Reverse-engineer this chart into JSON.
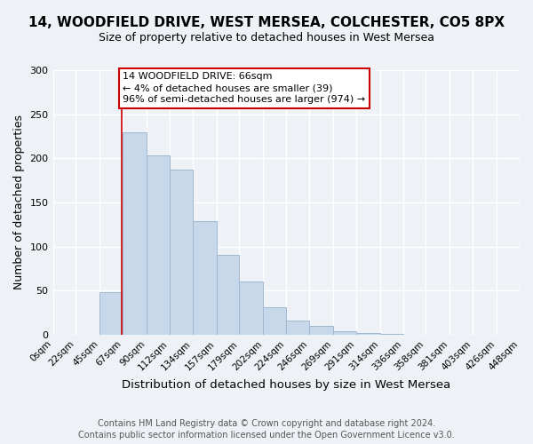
{
  "title": "14, WOODFIELD DRIVE, WEST MERSEA, COLCHESTER, CO5 8PX",
  "subtitle": "Size of property relative to detached houses in West Mersea",
  "xlabel": "Distribution of detached houses by size in West Mersea",
  "ylabel": "Number of detached properties",
  "bin_edges": [
    0,
    22,
    45,
    67,
    90,
    112,
    134,
    157,
    179,
    202,
    224,
    246,
    269,
    291,
    314,
    336,
    358,
    381,
    403,
    426,
    448
  ],
  "bin_counts": [
    0,
    0,
    48,
    230,
    203,
    187,
    129,
    91,
    60,
    31,
    16,
    10,
    4,
    2,
    1,
    0,
    0,
    0,
    0,
    0
  ],
  "bar_color": "#c8d8eb",
  "bar_edge_color": "#a0b8d0",
  "property_size": 66,
  "property_line_color": "#cc0000",
  "annotation_line1": "14 WOODFIELD DRIVE: 66sqm",
  "annotation_line2": "← 4% of detached houses are smaller (39)",
  "annotation_line3": "96% of semi-detached houses are larger (974) →",
  "annotation_box_color": "#ffffff",
  "annotation_box_edge_color": "#cc0000",
  "ylim": [
    0,
    300
  ],
  "yticks": [
    0,
    50,
    100,
    150,
    200,
    250,
    300
  ],
  "tick_labels": [
    "0sqm",
    "22sqm",
    "45sqm",
    "67sqm",
    "90sqm",
    "112sqm",
    "134sqm",
    "157sqm",
    "179sqm",
    "202sqm",
    "224sqm",
    "246sqm",
    "269sqm",
    "291sqm",
    "314sqm",
    "336sqm",
    "358sqm",
    "381sqm",
    "403sqm",
    "426sqm",
    "448sqm"
  ],
  "footer_line1": "Contains HM Land Registry data © Crown copyright and database right 2024.",
  "footer_line2": "Contains public sector information licensed under the Open Government Licence v3.0.",
  "background_color": "#eef2f7",
  "grid_color": "#ffffff",
  "title_fontsize": 11,
  "subtitle_fontsize": 9
}
